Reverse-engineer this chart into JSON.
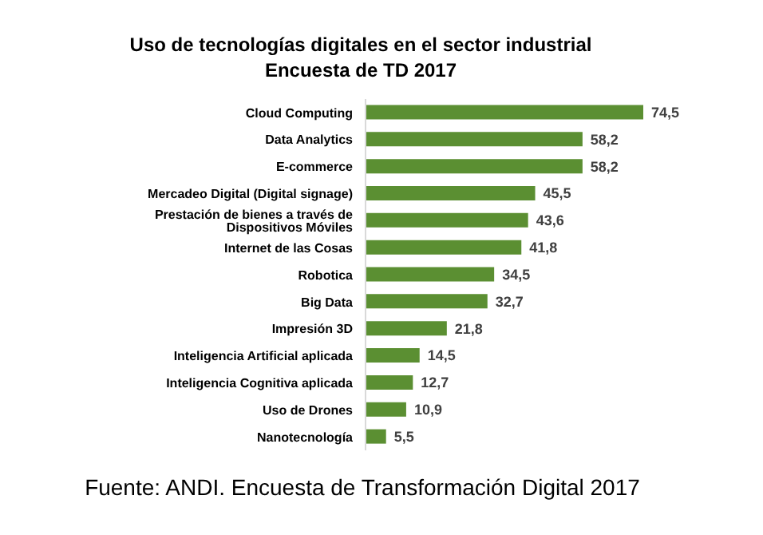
{
  "chart_data": {
    "type": "bar",
    "orientation": "horizontal",
    "title": "Uso de tecnologías digitales en el sector industrial",
    "subtitle": "Encuesta de TD 2017",
    "categories": [
      "Cloud Computing",
      "Data Analytics",
      "E-commerce",
      "Mercadeo Digital (Digital signage)",
      "Prestación de bienes a través de Dispositivos Móviles",
      "Internet de las Cosas",
      "Robotica",
      "Big Data",
      "Impresión 3D",
      "Inteligencia Artificial aplicada",
      "Inteligencia Cognitiva aplicada",
      "Uso de Drones",
      "Nanotecnología"
    ],
    "values": [
      74.5,
      58.2,
      58.2,
      45.5,
      43.6,
      41.8,
      34.5,
      32.7,
      21.8,
      14.5,
      12.7,
      10.9,
      5.5
    ],
    "value_labels": [
      "74,5",
      "58,2",
      "58,2",
      "45,5",
      "43,6",
      "41,8",
      "34,5",
      "32,7",
      "21,8",
      "14,5",
      "12,7",
      "10,9",
      "5,5"
    ],
    "color": "#5b8f32",
    "annotations": [
      "Fuente: ANDI. Encuesta de Transformación Digital 2017"
    ]
  }
}
